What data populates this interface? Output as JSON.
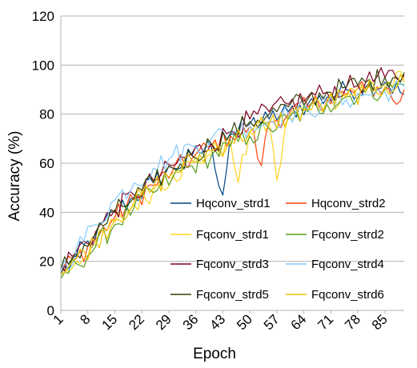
{
  "chart_data": {
    "type": "line",
    "xlabel": "Epoch",
    "ylabel": "Accuracy (%)",
    "xlim": [
      1,
      90
    ],
    "ylim": [
      0,
      120
    ],
    "y_ticks": [
      0,
      20,
      40,
      60,
      80,
      100,
      120
    ],
    "x_ticks": [
      1,
      8,
      15,
      22,
      29,
      36,
      43,
      50,
      57,
      64,
      71,
      78,
      85
    ],
    "grid": "horizontal",
    "legend_placement": "lower-right, inside plot",
    "series": [
      {
        "name": "Hqconv_strd1",
        "color": "#004586",
        "anchors": [
          [
            1,
            15
          ],
          [
            5,
            22
          ],
          [
            10,
            30
          ],
          [
            15,
            40
          ],
          [
            20,
            46
          ],
          [
            25,
            52
          ],
          [
            30,
            58
          ],
          [
            35,
            63
          ],
          [
            40,
            67
          ],
          [
            43,
            47
          ],
          [
            45,
            72
          ],
          [
            50,
            76
          ],
          [
            55,
            78
          ],
          [
            60,
            81
          ],
          [
            65,
            84
          ],
          [
            70,
            87
          ],
          [
            75,
            90
          ],
          [
            80,
            91
          ],
          [
            85,
            93
          ],
          [
            90,
            88
          ]
        ]
      },
      {
        "name": "Hqconv_strd2",
        "color": "#ff420e",
        "anchors": [
          [
            1,
            17
          ],
          [
            5,
            21
          ],
          [
            10,
            29
          ],
          [
            15,
            38
          ],
          [
            20,
            45
          ],
          [
            25,
            51
          ],
          [
            30,
            57
          ],
          [
            35,
            62
          ],
          [
            40,
            67
          ],
          [
            45,
            71
          ],
          [
            50,
            75
          ],
          [
            53,
            59
          ],
          [
            55,
            77
          ],
          [
            60,
            80
          ],
          [
            65,
            83
          ],
          [
            70,
            86
          ],
          [
            75,
            88
          ],
          [
            80,
            90
          ],
          [
            85,
            91
          ],
          [
            88,
            84
          ],
          [
            90,
            90
          ]
        ]
      },
      {
        "name": "Fqconv_strd1",
        "color": "#ffd320",
        "anchors": [
          [
            1,
            14
          ],
          [
            5,
            20
          ],
          [
            10,
            27
          ],
          [
            15,
            36
          ],
          [
            20,
            43
          ],
          [
            25,
            49
          ],
          [
            30,
            55
          ],
          [
            35,
            60
          ],
          [
            40,
            64
          ],
          [
            45,
            68
          ],
          [
            47,
            52
          ],
          [
            50,
            73
          ],
          [
            55,
            76
          ],
          [
            57,
            53
          ],
          [
            60,
            79
          ],
          [
            65,
            82
          ],
          [
            70,
            85
          ],
          [
            75,
            88
          ],
          [
            80,
            90
          ],
          [
            85,
            92
          ],
          [
            90,
            94
          ]
        ]
      },
      {
        "name": "Fqconv_strd2",
        "color": "#579d1c",
        "anchors": [
          [
            1,
            13
          ],
          [
            5,
            19
          ],
          [
            10,
            26
          ],
          [
            15,
            35
          ],
          [
            20,
            42
          ],
          [
            25,
            48
          ],
          [
            30,
            54
          ],
          [
            35,
            59
          ],
          [
            40,
            63
          ],
          [
            45,
            67
          ],
          [
            50,
            71
          ],
          [
            55,
            74
          ],
          [
            60,
            78
          ],
          [
            65,
            81
          ],
          [
            70,
            84
          ],
          [
            75,
            87
          ],
          [
            80,
            89
          ],
          [
            85,
            90
          ],
          [
            90,
            92
          ]
        ]
      },
      {
        "name": "Fqconv_strd3",
        "color": "#7e0021",
        "anchors": [
          [
            1,
            18
          ],
          [
            5,
            24
          ],
          [
            10,
            32
          ],
          [
            15,
            41
          ],
          [
            20,
            47
          ],
          [
            25,
            53
          ],
          [
            30,
            59
          ],
          [
            35,
            64
          ],
          [
            40,
            68
          ],
          [
            45,
            73
          ],
          [
            50,
            78
          ],
          [
            55,
            81
          ],
          [
            60,
            84
          ],
          [
            65,
            87
          ],
          [
            70,
            89
          ],
          [
            75,
            91
          ],
          [
            80,
            93
          ],
          [
            85,
            95
          ],
          [
            90,
            96
          ]
        ]
      },
      {
        "name": "Fqconv_strd4",
        "color": "#83caff",
        "anchors": [
          [
            1,
            16
          ],
          [
            5,
            25
          ],
          [
            10,
            35
          ],
          [
            15,
            45
          ],
          [
            20,
            52
          ],
          [
            25,
            58
          ],
          [
            30,
            63
          ],
          [
            35,
            67
          ],
          [
            40,
            70
          ],
          [
            45,
            73
          ],
          [
            50,
            75
          ],
          [
            55,
            77
          ],
          [
            60,
            80
          ],
          [
            65,
            82
          ],
          [
            70,
            84
          ],
          [
            75,
            86
          ],
          [
            80,
            88
          ],
          [
            85,
            89
          ],
          [
            90,
            91
          ]
        ]
      },
      {
        "name": "Fqconv_strd5",
        "color": "#314004",
        "anchors": [
          [
            1,
            17
          ],
          [
            5,
            23
          ],
          [
            10,
            31
          ],
          [
            15,
            40
          ],
          [
            20,
            46
          ],
          [
            25,
            52
          ],
          [
            30,
            58
          ],
          [
            35,
            63
          ],
          [
            40,
            68
          ],
          [
            45,
            72
          ],
          [
            50,
            77
          ],
          [
            55,
            80
          ],
          [
            60,
            83
          ],
          [
            65,
            86
          ],
          [
            70,
            89
          ],
          [
            75,
            91
          ],
          [
            80,
            93
          ],
          [
            85,
            95
          ],
          [
            90,
            97
          ]
        ]
      },
      {
        "name": "Fqconv_strd6",
        "color": "#e8c000",
        "anchors": [
          [
            1,
            15
          ],
          [
            5,
            21
          ],
          [
            10,
            28
          ],
          [
            15,
            37
          ],
          [
            20,
            44
          ],
          [
            25,
            50
          ],
          [
            30,
            56
          ],
          [
            35,
            61
          ],
          [
            40,
            65
          ],
          [
            45,
            69
          ],
          [
            50,
            73
          ],
          [
            55,
            76
          ],
          [
            60,
            79
          ],
          [
            65,
            82
          ],
          [
            70,
            85
          ],
          [
            75,
            87
          ],
          [
            80,
            89
          ],
          [
            85,
            91
          ],
          [
            90,
            93
          ]
        ]
      }
    ]
  }
}
